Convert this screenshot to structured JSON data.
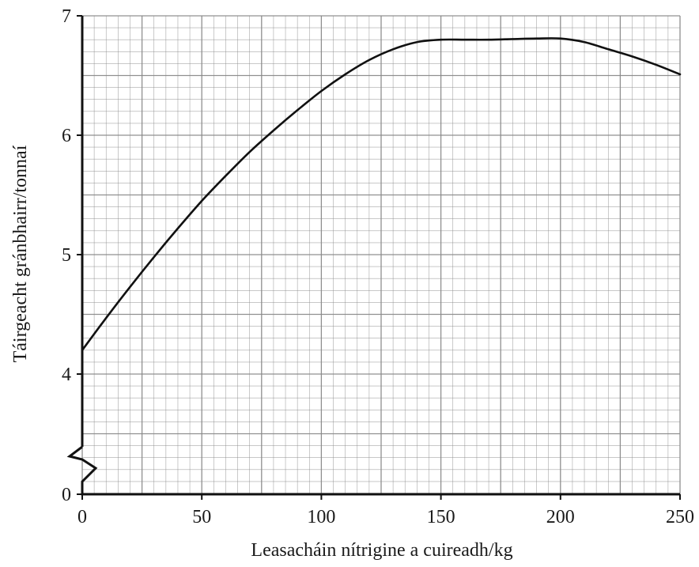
{
  "chart_data": {
    "type": "line",
    "title": "",
    "xlabel": "Leasacháin nítrigine a cuireadh/kg",
    "ylabel": "Táirgeacht gránbhairr/tonnaí",
    "xlim": [
      0,
      250
    ],
    "ylim": [
      3,
      7
    ],
    "y_axis_break": true,
    "x_ticks": [
      0,
      50,
      100,
      150,
      200,
      250
    ],
    "y_ticks": [
      {
        "value": 0,
        "label": "0"
      },
      {
        "value": 4,
        "label": "4"
      },
      {
        "value": 5,
        "label": "5"
      },
      {
        "value": 6,
        "label": "6"
      },
      {
        "value": 7,
        "label": "7"
      }
    ],
    "grid": true,
    "line_color": "#111111",
    "grid_color": "#8a8a8a",
    "series": [
      {
        "x": [
          0,
          10,
          20,
          30,
          40,
          50,
          60,
          70,
          80,
          90,
          100,
          110,
          120,
          130,
          140,
          150,
          160,
          170,
          180,
          190,
          200,
          210,
          220,
          230,
          240,
          250
        ],
        "y": [
          4.2,
          4.47,
          4.73,
          4.98,
          5.22,
          5.45,
          5.66,
          5.86,
          6.04,
          6.21,
          6.37,
          6.51,
          6.63,
          6.72,
          6.78,
          6.8,
          6.8,
          6.8,
          6.805,
          6.81,
          6.81,
          6.78,
          6.72,
          6.66,
          6.59,
          6.51
        ]
      }
    ]
  }
}
